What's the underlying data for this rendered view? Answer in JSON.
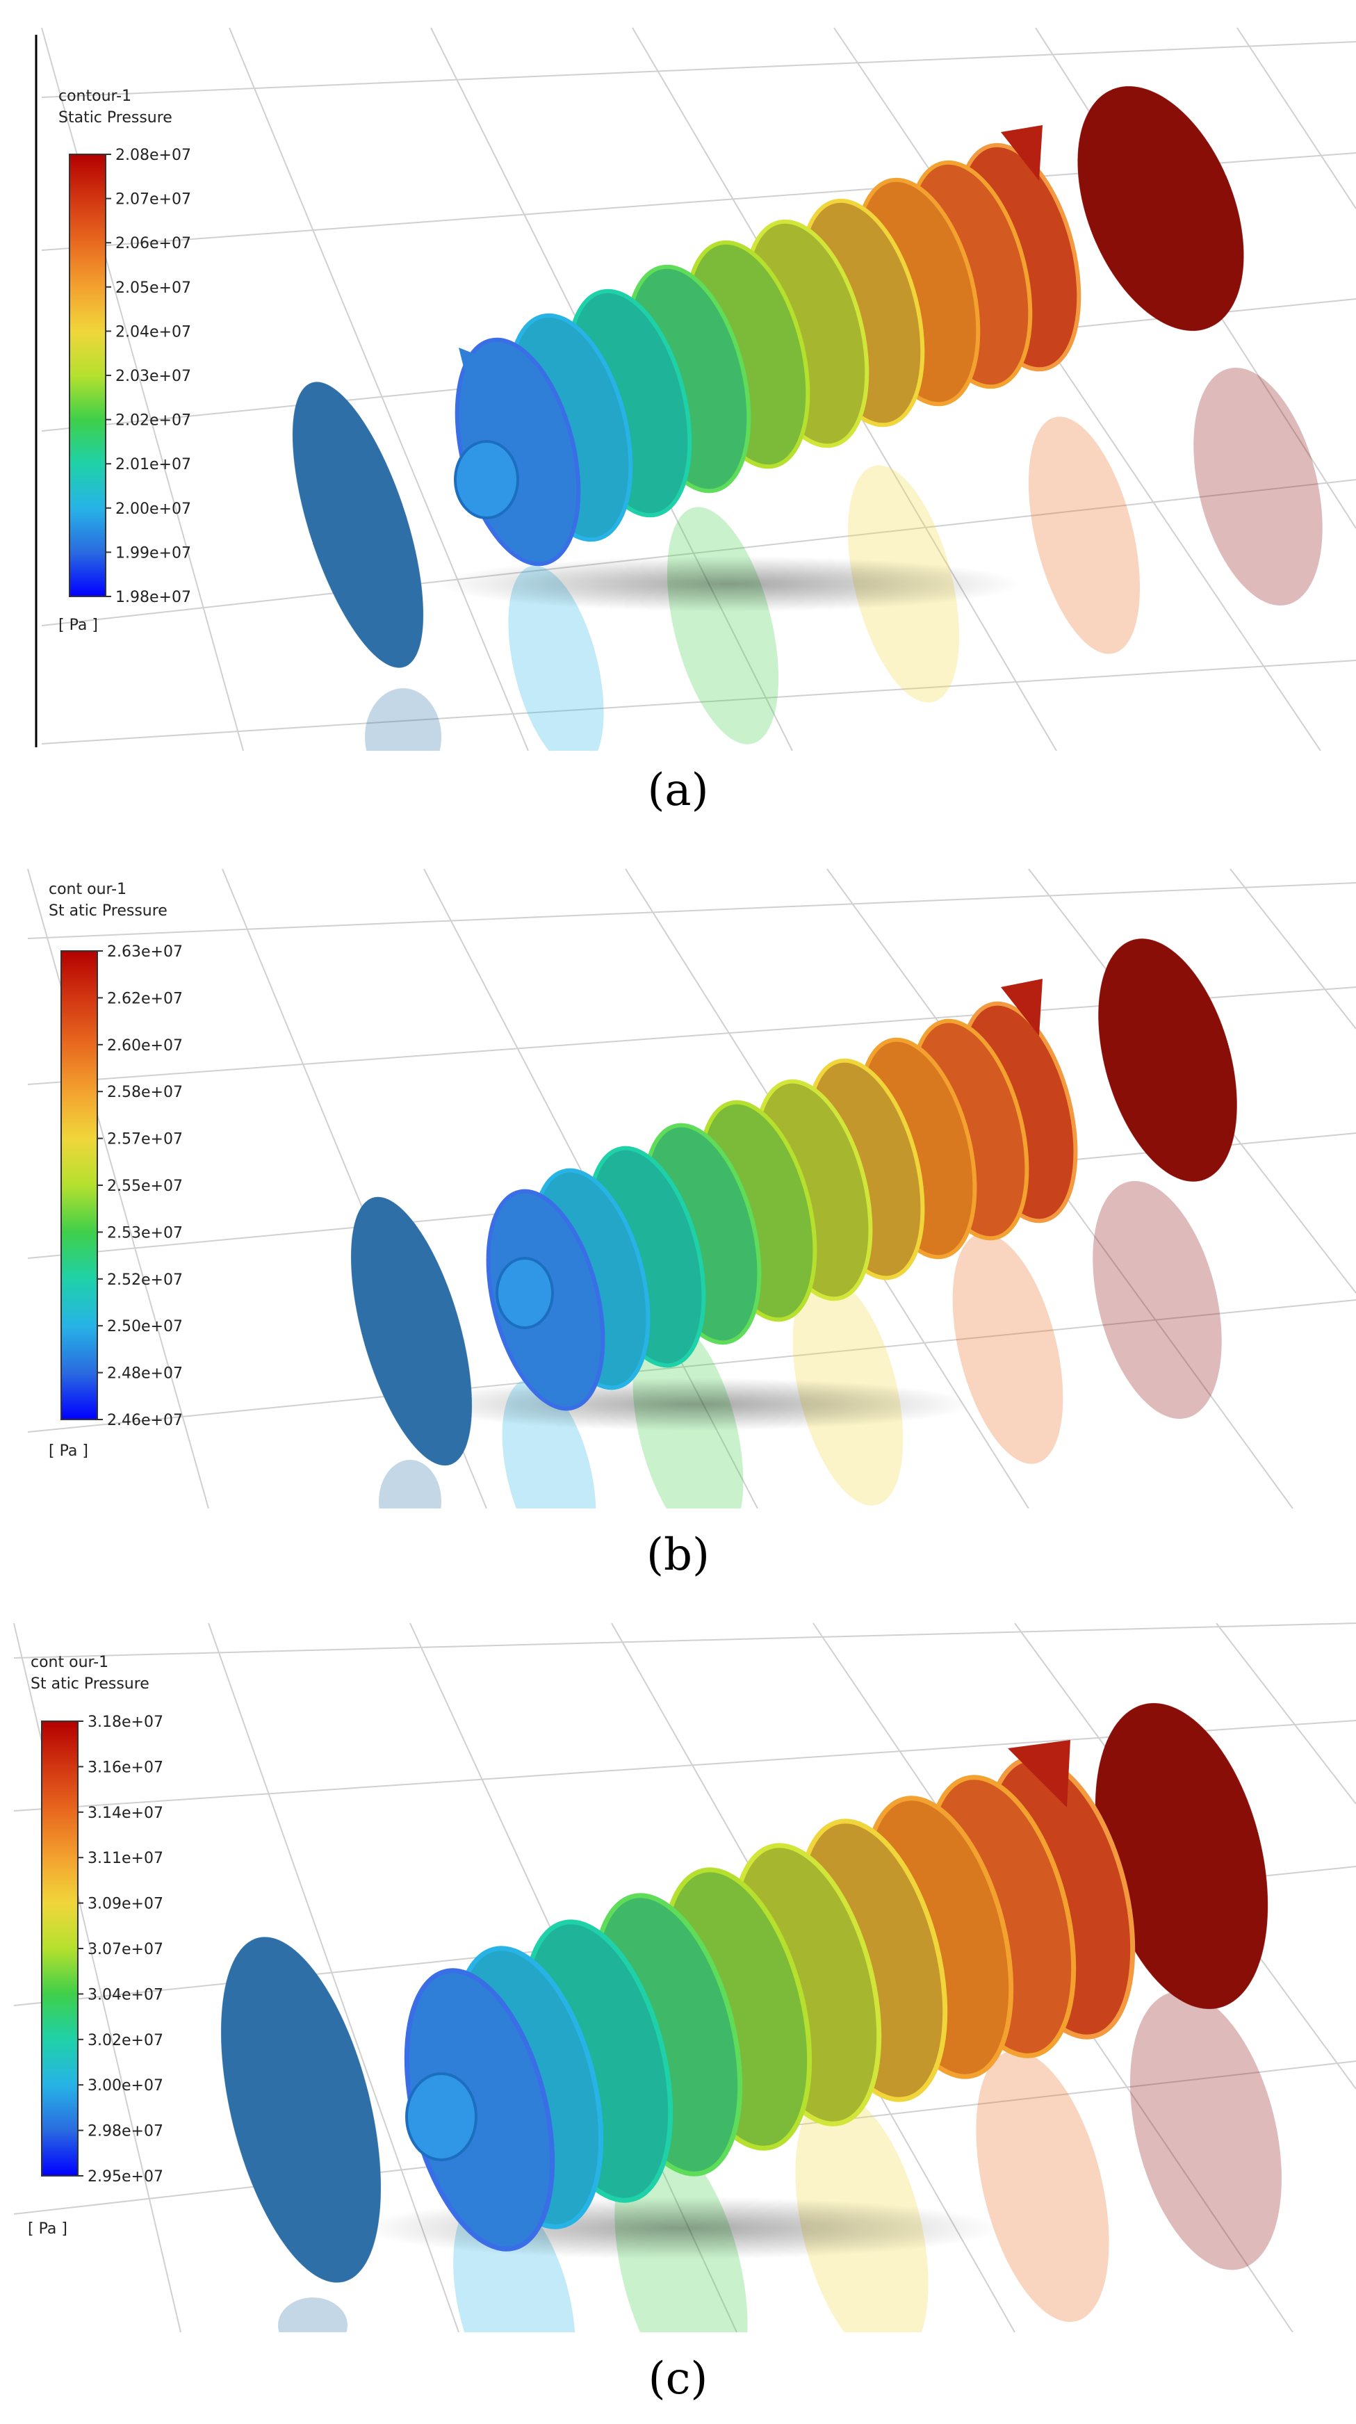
{
  "panels": [
    {
      "caption": "(a)",
      "legend": {
        "name": "contour-1",
        "variable": "Static Pressure",
        "unit": "[ Pa ]",
        "ticks": [
          "2.08e+07",
          "2.07e+07",
          "2.06e+07",
          "2.05e+07",
          "2.04e+07",
          "2.03e+07",
          "2.02e+07",
          "2.01e+07",
          "2.00e+07",
          "1.99e+07",
          "1.98e+07"
        ]
      }
    },
    {
      "caption": "(b)",
      "legend": {
        "name": "cont our-1",
        "variable": "St atic Pressure",
        "unit": "[ Pa ]",
        "ticks": [
          "2.63e+07",
          "2.62e+07",
          "2.60e+07",
          "2.58e+07",
          "2.57e+07",
          "2.55e+07",
          "2.53e+07",
          "2.52e+07",
          "2.50e+07",
          "2.48e+07",
          "2.46e+07"
        ]
      }
    },
    {
      "caption": "(c)",
      "legend": {
        "name": "cont our-1",
        "variable": "St atic Pressure",
        "unit": "[ Pa ]",
        "ticks": [
          "3.18e+07",
          "3.16e+07",
          "3.14e+07",
          "3.11e+07",
          "3.09e+07",
          "3.07e+07",
          "3.04e+07",
          "3.02e+07",
          "3.00e+07",
          "2.98e+07",
          "2.95e+07"
        ]
      }
    }
  ],
  "colormap": [
    "#0000ff",
    "#2a6be0",
    "#27b3e6",
    "#1fd1a8",
    "#3fcf4a",
    "#b5e02e",
    "#f0d63a",
    "#f3a12f",
    "#e86a1f",
    "#d23612",
    "#b30000"
  ],
  "inlet_color": "#2e6fa7",
  "outlet_color": "#8a0e08"
}
